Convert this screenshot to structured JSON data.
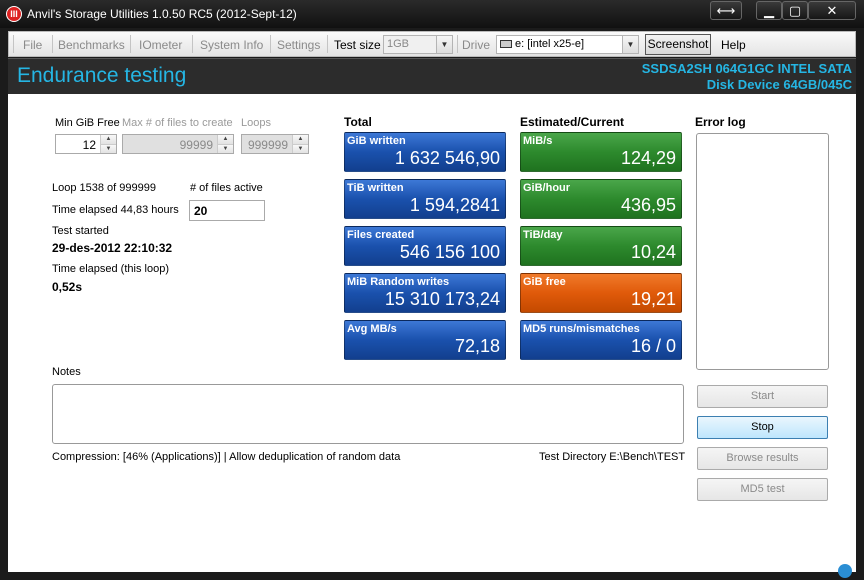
{
  "window": {
    "title": "Anvil's Storage Utilities 1.0.50 RC5 (2012-Sept-12)",
    "icon_text": "III"
  },
  "window_controls": {
    "resize": "⟷",
    "minimize": "▁",
    "maximize": "▢",
    "close": "✕"
  },
  "toolbar": {
    "file": "File",
    "benchmarks": "Benchmarks",
    "iometer": "IOmeter",
    "system_info": "System Info",
    "settings": "Settings",
    "test_size_label": "Test size",
    "test_size_value": "1GB",
    "drive_label": "Drive",
    "drive_value": "e: [intel x25-e]",
    "screenshot": "Screenshot",
    "help": "Help"
  },
  "banner": {
    "title": "Endurance testing",
    "device_line1": "SSDSA2SH 064G1GC INTEL SATA",
    "device_line2": "Disk Device 64GB/045C"
  },
  "settings": {
    "min_gib_free_label": "Min GiB Free",
    "min_gib_free_value": "12",
    "max_files_label": "Max # of files to create",
    "max_files_value": "99999",
    "loops_label": "Loops",
    "loops_value": "999999"
  },
  "status": {
    "loop": "Loop 1538 of 999999",
    "files_active_label": "# of files active",
    "files_active_value": "20",
    "time_elapsed": "Time elapsed 44,83 hours",
    "test_started_label": "Test started",
    "test_started_value": "29-des-2012 22:10:32",
    "loop_elapsed_label": "Time elapsed (this loop)",
    "loop_elapsed_value": "0,52s"
  },
  "totals": {
    "heading": "Total",
    "tiles": [
      {
        "label": "GiB written",
        "value": "1 632 546,90"
      },
      {
        "label": "TiB written",
        "value": "1 594,2841"
      },
      {
        "label": "Files created",
        "value": "546 156 100"
      },
      {
        "label": "MiB Random writes",
        "value": "15 310 173,24"
      },
      {
        "label": "Avg MB/s",
        "value": "72,18"
      }
    ]
  },
  "current": {
    "heading": "Estimated/Current",
    "tiles": [
      {
        "label": "MiB/s",
        "value": "124,29",
        "color": "#2d8a2d"
      },
      {
        "label": "GiB/hour",
        "value": "436,95",
        "color": "#2d8a2d"
      },
      {
        "label": "TiB/day",
        "value": "10,24",
        "color": "#2d8a2d"
      },
      {
        "label": "GiB free",
        "value": "19,21",
        "color": "#e05a0a"
      },
      {
        "label": "MD5 runs/mismatches",
        "value": "16 / 0",
        "color": "#1a51ad"
      }
    ]
  },
  "error_log": {
    "heading": "Error log"
  },
  "notes": {
    "label": "Notes"
  },
  "buttons": {
    "start": "Start",
    "stop": "Stop",
    "browse_results": "Browse results",
    "md5_test": "MD5 test"
  },
  "footer": {
    "compression": "Compression: [46% (Applications)] | Allow deduplication of random data",
    "test_directory": "Test Directory E:\\Bench\\TEST"
  },
  "colors": {
    "accent": "#25b6e4",
    "tile_blue": "#1a51ad",
    "tile_green": "#2d8a2d",
    "tile_orange": "#e05a0a"
  }
}
